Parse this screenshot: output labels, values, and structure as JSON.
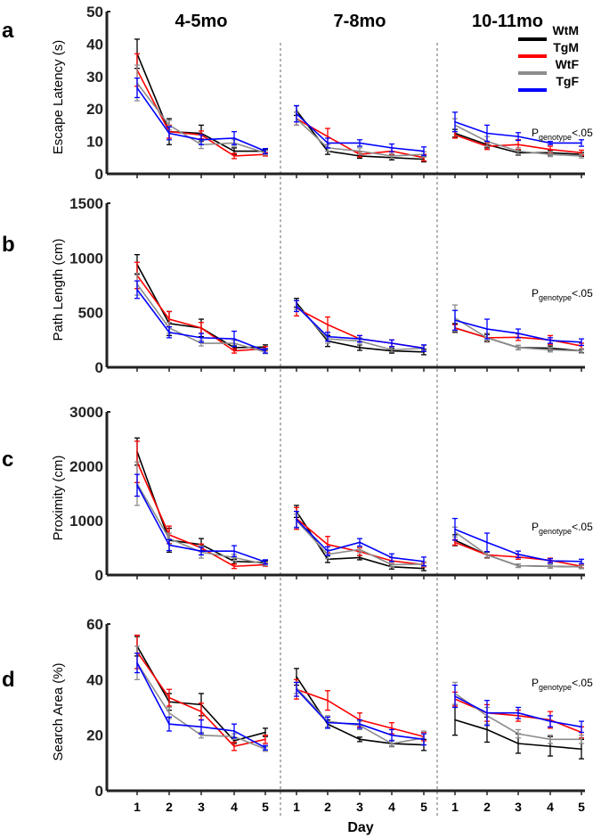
{
  "group_titles": [
    "4-5mo",
    "7-8mo",
    "10-11mo"
  ],
  "xlabel": "Day",
  "days": [
    "1",
    "2",
    "3",
    "4",
    "5"
  ],
  "legend": [
    {
      "name": "WtM",
      "color": "#000000"
    },
    {
      "name": "TgM",
      "color": "#ff0000"
    },
    {
      "name": "WtF",
      "color": "#8c8c8c"
    },
    {
      "name": "TgF",
      "color": "#0000ff"
    }
  ],
  "annotation": {
    "main": "P",
    "sub": "genotype",
    "tail": "<.05"
  },
  "chart_data": [
    {
      "type": "line",
      "panel": "a",
      "ylabel": "Escape Latency (s)",
      "ylim": [
        0,
        50
      ],
      "yticks": [
        "0",
        "10",
        "20",
        "30",
        "40",
        "50"
      ],
      "series": [
        {
          "name": "WtM",
          "color": "#000000",
          "values": [
            [
              37,
              13,
              12.5,
              7,
              7
            ],
            [
              19.5,
              7,
              5.5,
              5,
              4.5
            ],
            [
              12.5,
              9,
              6.5,
              6.5,
              6
            ]
          ],
          "errors": [
            [
              4.5,
              4,
              2.5,
              1,
              0.5
            ],
            [
              1.5,
              1,
              0.7,
              0.7,
              0.8
            ],
            [
              1.2,
              1,
              0.7,
              0.7,
              0.6
            ]
          ]
        },
        {
          "name": "TgM",
          "color": "#ff0000",
          "values": [
            [
              32,
              13,
              12,
              5.5,
              6
            ],
            [
              17,
              11.5,
              6,
              7,
              5
            ],
            [
              12,
              8.5,
              9,
              7.5,
              6.5
            ]
          ],
          "errors": [
            [
              5,
              2,
              1.2,
              0.8,
              0.5
            ],
            [
              2,
              2.5,
              0.8,
              1,
              1
            ],
            [
              1,
              1,
              1.5,
              1,
              0.8
            ]
          ]
        },
        {
          "name": "WtF",
          "color": "#8c8c8c",
          "values": [
            [
              28,
              15,
              9,
              9.5,
              6.5
            ],
            [
              17,
              8,
              7,
              5.5,
              6
            ],
            [
              15,
              10,
              7,
              6,
              5.5
            ]
          ],
          "errors": [
            [
              5.5,
              1.5,
              1.2,
              1,
              0.7
            ],
            [
              2,
              1,
              1,
              0.7,
              0.8
            ],
            [
              2,
              1.5,
              1,
              0.7,
              0.6
            ]
          ]
        },
        {
          "name": "TgF",
          "color": "#0000ff",
          "values": [
            [
              26.5,
              12.5,
              10.5,
              11,
              7
            ],
            [
              18.5,
              9.5,
              9.5,
              8,
              7
            ],
            [
              16,
              12.5,
              11.5,
              9.5,
              9.5
            ]
          ],
          "errors": [
            [
              3,
              2,
              1.5,
              2,
              0.8
            ],
            [
              2.5,
              1.5,
              1,
              1.2,
              1.3
            ],
            [
              3,
              2.5,
              1.2,
              0.5,
              1
            ]
          ]
        }
      ]
    },
    {
      "type": "line",
      "panel": "b",
      "ylabel": "Path Length (cm)",
      "ylim": [
        0,
        1500
      ],
      "yticks": [
        "0",
        "500",
        "1000",
        "1500"
      ],
      "series": [
        {
          "name": "WtM",
          "color": "#000000",
          "values": [
            [
              940,
              400,
              360,
              180,
              185
            ],
            [
              590,
              240,
              180,
              150,
              140
            ],
            [
              360,
              270,
              180,
              175,
              150
            ]
          ],
          "errors": [
            [
              90,
              110,
              80,
              20,
              20
            ],
            [
              40,
              50,
              25,
              20,
              25
            ],
            [
              40,
              30,
              20,
              20,
              15
            ]
          ]
        },
        {
          "name": "TgM",
          "color": "#ff0000",
          "values": [
            [
              840,
              440,
              360,
              150,
              170
            ],
            [
              540,
              390,
              260,
              220,
              175
            ],
            [
              360,
              270,
              275,
              250,
              195
            ]
          ],
          "errors": [
            [
              120,
              70,
              50,
              20,
              20
            ],
            [
              70,
              70,
              30,
              30,
              25
            ],
            [
              30,
              40,
              30,
              40,
              25
            ]
          ]
        },
        {
          "name": "WtF",
          "color": "#8c8c8c",
          "values": [
            [
              760,
              360,
              220,
              220,
              140
            ],
            [
              570,
              260,
              240,
              160,
              175
            ],
            [
              450,
              270,
              180,
              160,
              150
            ]
          ],
          "errors": [
            [
              100,
              50,
              25,
              25,
              15
            ],
            [
              40,
              40,
              30,
              20,
              25
            ],
            [
              120,
              40,
              20,
              20,
              20
            ]
          ]
        },
        {
          "name": "TgF",
          "color": "#0000ff",
          "values": [
            [
              710,
              320,
              270,
              260,
              150
            ],
            [
              560,
              280,
              260,
              220,
              175
            ],
            [
              430,
              350,
              310,
              245,
              230
            ]
          ],
          "errors": [
            [
              80,
              50,
              40,
              70,
              20
            ],
            [
              50,
              40,
              30,
              30,
              30
            ],
            [
              90,
              90,
              40,
              25,
              30
            ]
          ]
        }
      ]
    },
    {
      "type": "line",
      "panel": "c",
      "ylabel": "Proximity (cm)",
      "ylim": [
        0,
        3000
      ],
      "yticks": [
        "0",
        "1000",
        "2000",
        "3000"
      ],
      "series": [
        {
          "name": "WtM",
          "color": "#000000",
          "values": [
            [
              2270,
              640,
              560,
              250,
              230
            ],
            [
              1170,
              290,
              320,
              150,
              120
            ],
            [
              640,
              370,
              170,
              160,
              150
            ]
          ],
          "errors": [
            [
              250,
              220,
              110,
              40,
              30
            ],
            [
              110,
              60,
              40,
              40,
              40
            ],
            [
              100,
              50,
              30,
              30,
              30
            ]
          ]
        },
        {
          "name": "TgM",
          "color": "#ff0000",
          "values": [
            [
              2080,
              740,
              500,
              160,
              190
            ],
            [
              1040,
              560,
              430,
              260,
              190
            ],
            [
              600,
              370,
              330,
              270,
              160
            ]
          ],
          "errors": [
            [
              380,
              160,
              70,
              40,
              30
            ],
            [
              200,
              150,
              70,
              60,
              40
            ],
            [
              50,
              60,
              40,
              40,
              30
            ]
          ]
        },
        {
          "name": "WtF",
          "color": "#8c8c8c",
          "values": [
            [
              1680,
              670,
              420,
              320,
              200
            ],
            [
              1000,
              380,
              470,
              190,
              200
            ],
            [
              790,
              370,
              170,
              160,
              150
            ]
          ],
          "errors": [
            [
              400,
              100,
              110,
              60,
              30
            ],
            [
              120,
              80,
              60,
              40,
              40
            ],
            [
              90,
              60,
              30,
              30,
              30
            ]
          ]
        },
        {
          "name": "TgF",
          "color": "#0000ff",
          "values": [
            [
              1650,
              550,
              440,
              440,
              240
            ],
            [
              1020,
              440,
              600,
              320,
              250
            ],
            [
              840,
              600,
              380,
              260,
              250
            ]
          ],
          "errors": [
            [
              200,
              100,
              70,
              100,
              40
            ],
            [
              150,
              80,
              70,
              70,
              80
            ],
            [
              200,
              170,
              60,
              40,
              40
            ]
          ]
        }
      ]
    },
    {
      "type": "line",
      "panel": "d",
      "ylabel": "Search Area (%)",
      "ylim": [
        0,
        60
      ],
      "yticks": [
        "0",
        "20",
        "40",
        "60"
      ],
      "series": [
        {
          "name": "WtM",
          "color": "#000000",
          "values": [
            [
              52,
              32,
              31,
              18,
              21
            ],
            [
              41,
              24,
              18.5,
              17,
              16.5
            ],
            [
              25.5,
              22,
              17,
              16,
              15
            ]
          ],
          "errors": [
            [
              3.5,
              3,
              4,
              1,
              1.5
            ],
            [
              3,
              1.5,
              0.8,
              1,
              2
            ],
            [
              5.5,
              4.5,
              3.5,
              3.5,
              3.5
            ]
          ]
        },
        {
          "name": "TgM",
          "color": "#ff0000",
          "values": [
            [
              50,
              33.5,
              28.5,
              16,
              18.5
            ],
            [
              36.5,
              32.5,
              25.5,
              22.5,
              19.5
            ],
            [
              33,
              28,
              27,
              25.5,
              21
            ]
          ],
          "errors": [
            [
              6,
              3,
              3,
              1.5,
              1.5
            ],
            [
              3.5,
              3.5,
              2.5,
              2,
              1.5
            ],
            [
              2.5,
              3,
              2,
              3,
              2
            ]
          ]
        },
        {
          "name": "WtF",
          "color": "#8c8c8c",
          "values": [
            [
              46,
              28,
              20,
              19.5,
              15
            ],
            [
              37,
              25,
              23.5,
              17,
              19
            ],
            [
              35,
              27,
              20.5,
              18.5,
              18.5
            ]
          ],
          "errors": [
            [
              6,
              2,
              1,
              1,
              0.8
            ],
            [
              2,
              2,
              1.5,
              1.2,
              2.5
            ],
            [
              4,
              3,
              1.5,
              1.5,
              1.5
            ]
          ]
        },
        {
          "name": "TgF",
          "color": "#0000ff",
          "values": [
            [
              46,
              24,
              23,
              21.5,
              15.5
            ],
            [
              36.5,
              24.5,
              24,
              20,
              18.5
            ],
            [
              34,
              28,
              28,
              25,
              23
            ]
          ],
          "errors": [
            [
              3.5,
              2.5,
              2.5,
              2.5,
              0.8
            ],
            [
              2.5,
              2,
              1.5,
              2,
              2
            ],
            [
              4,
              4.5,
              2,
              2,
              2
            ]
          ]
        }
      ]
    }
  ]
}
